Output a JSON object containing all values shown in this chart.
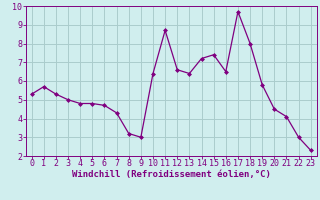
{
  "x": [
    0,
    1,
    2,
    3,
    4,
    5,
    6,
    7,
    8,
    9,
    10,
    11,
    12,
    13,
    14,
    15,
    16,
    17,
    18,
    19,
    20,
    21,
    22,
    23
  ],
  "y": [
    5.3,
    5.7,
    5.3,
    5.0,
    4.8,
    4.8,
    4.7,
    4.3,
    3.2,
    3.0,
    6.4,
    8.7,
    6.6,
    6.4,
    7.2,
    7.4,
    6.5,
    9.7,
    8.0,
    5.8,
    4.5,
    4.1,
    3.0,
    2.3
  ],
  "line_color": "#800080",
  "marker": "D",
  "marker_size": 2.0,
  "bg_color": "#d0eeee",
  "grid_color": "#aacccc",
  "xlabel": "Windchill (Refroidissement éolien,°C)",
  "xlim_min": -0.5,
  "xlim_max": 23.5,
  "ylim": [
    2,
    10
  ],
  "yticks": [
    2,
    3,
    4,
    5,
    6,
    7,
    8,
    9,
    10
  ],
  "xticks": [
    0,
    1,
    2,
    3,
    4,
    5,
    6,
    7,
    8,
    9,
    10,
    11,
    12,
    13,
    14,
    15,
    16,
    17,
    18,
    19,
    20,
    21,
    22,
    23
  ],
  "tick_color": "#800080",
  "label_color": "#800080",
  "axis_color": "#800080",
  "xlabel_fontsize": 6.5,
  "tick_fontsize": 6.0
}
